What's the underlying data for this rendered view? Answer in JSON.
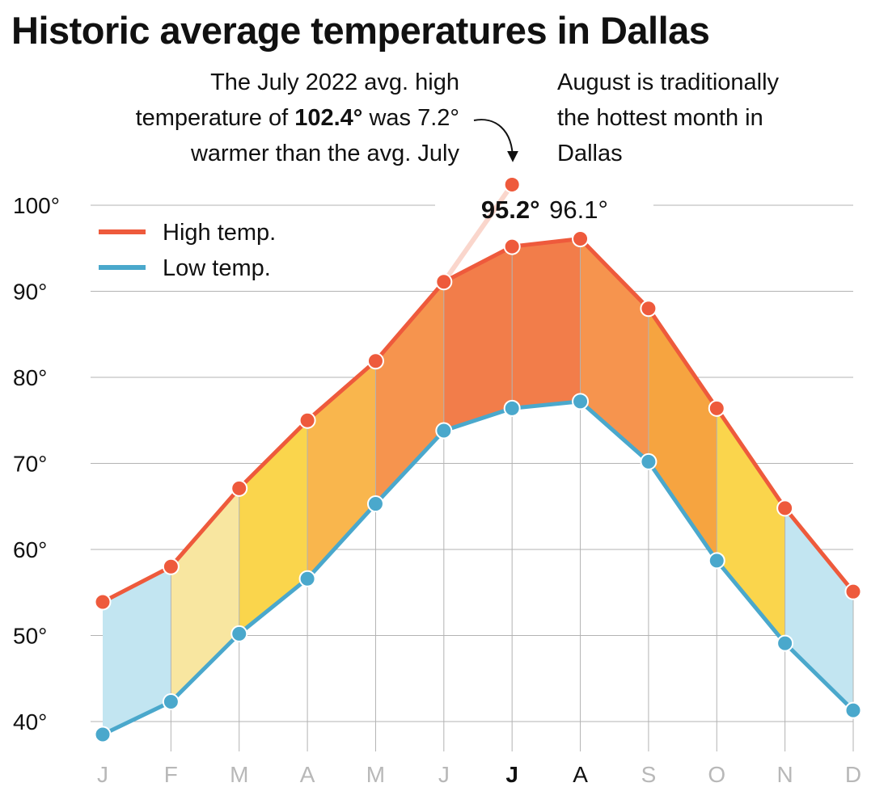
{
  "title": "Historic average temperatures in Dallas",
  "annotations": {
    "july": {
      "line1": "The July 2022 avg. high",
      "line2_pre": "temperature of ",
      "line2_bold": "102.4°",
      "line2_post": " was 7.2°",
      "line3": "warmer than the avg. July"
    },
    "august": {
      "line1": "August is traditionally",
      "line2": "the hottest month in",
      "line3": "Dallas"
    }
  },
  "chart_data": {
    "type": "area",
    "title": "Historic average temperatures in Dallas",
    "categories": [
      "J",
      "F",
      "M",
      "A",
      "M",
      "J",
      "J",
      "A",
      "S",
      "O",
      "N",
      "D"
    ],
    "series": [
      {
        "name": "High temp.",
        "values": [
          53.9,
          58.0,
          67.1,
          75.0,
          81.9,
          91.1,
          95.2,
          96.1,
          88.0,
          76.4,
          64.8,
          55.1
        ],
        "color": "#ee5a3c"
      },
      {
        "name": "Low temp.",
        "values": [
          38.5,
          42.3,
          50.2,
          56.6,
          65.3,
          73.8,
          76.4,
          77.2,
          70.2,
          58.7,
          49.1,
          41.3
        ],
        "color": "#4aa8cc"
      }
    ],
    "highlight": {
      "label": "July 2022 avg. high",
      "category_index": 6,
      "value": 102.4
    },
    "point_labels": [
      {
        "category_index": 6,
        "text": "95.2°",
        "bold": true
      },
      {
        "category_index": 7,
        "text": "96.1°",
        "bold": false
      }
    ],
    "ylim": [
      37,
      105
    ],
    "yticks": [
      40,
      50,
      60,
      70,
      80,
      90,
      100
    ],
    "ytick_labels": [
      "40°",
      "50°",
      "60°",
      "70°",
      "80°",
      "90°",
      "100°"
    ],
    "xlabel": "",
    "ylabel": "",
    "grid": true,
    "legend_position": "top-left",
    "band_colors": [
      "#c2e5f1",
      "#f8e6a0",
      "#fad54c",
      "#f9b64d",
      "#f6944e",
      "#f27d4a",
      "#f27d4a",
      "#f6944e",
      "#f6a440",
      "#fad54c",
      "#c2e5f1"
    ],
    "colors": {
      "highlight_line": "#fad6cc",
      "grid": "#b3b3b3",
      "axis_dim": "#b8b8b8"
    }
  }
}
